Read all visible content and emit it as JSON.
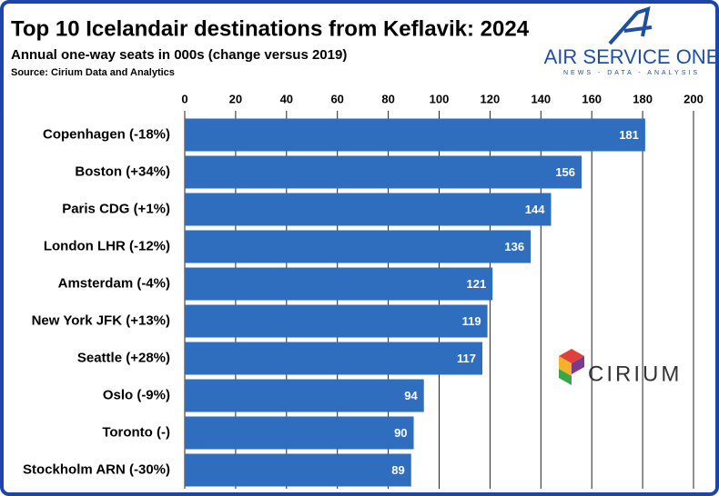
{
  "chart_data": {
    "type": "bar",
    "orientation": "horizontal",
    "title": "Top 10 Icelandair destinations from Keflavik: 2024",
    "subtitle": "Annual one-way seats in 000s (change versus 2019)",
    "source": "Source: Cirium Data and Analytics",
    "categories": [
      "Copenhagen (-18%)",
      "Boston (+34%)",
      "Paris CDG (+1%)",
      "London LHR (-12%)",
      "Amsterdam (-4%)",
      "New York JFK (+13%)",
      "Seattle (+28%)",
      "Oslo (-9%)",
      "Toronto (-)",
      "Stockholm ARN (-30%)"
    ],
    "values": [
      181,
      156,
      144,
      136,
      121,
      119,
      117,
      94,
      90,
      89
    ],
    "color": "#2f6ebf",
    "xlim": [
      0,
      200
    ],
    "xticks": [
      0,
      20,
      40,
      60,
      80,
      100,
      120,
      140,
      160,
      180,
      200
    ],
    "grid": true
  },
  "logos": {
    "air_service_one": "AIR SERVICE ONE",
    "tagline": "NEWS - DATA - ANALYSIS",
    "cirium": "CIRIUM"
  }
}
